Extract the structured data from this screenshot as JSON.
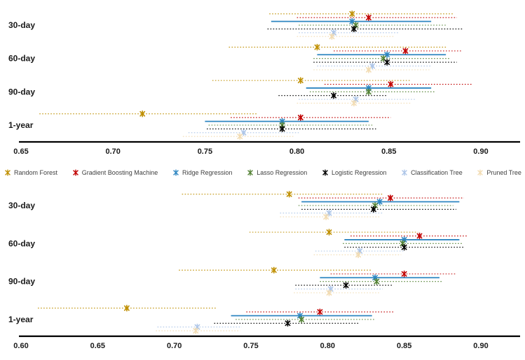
{
  "legend_note": "legend items are derived from chart series names/colors",
  "chart_data": [
    {
      "type": "scatter",
      "name": "top-forecast-horizon-intervals",
      "title": "",
      "xlabel": "",
      "ylabel": "",
      "orientation": "horizontal-confidence-intervals",
      "categories": [
        "30-day",
        "60-day",
        "90-day",
        "1-year"
      ],
      "xlim": [
        0.65,
        0.9
      ],
      "xticks": [
        0.65,
        0.7,
        0.75,
        0.8,
        0.85,
        0.9
      ],
      "grid": false,
      "legend_position": "below",
      "series": [
        {
          "name": "Random Forest",
          "color": "#BF8F00",
          "style": "dotted",
          "centers": [
            0.83,
            0.811,
            0.802,
            0.716
          ],
          "ci_low": [
            0.785,
            0.763,
            0.754,
            0.66
          ],
          "ci_high": [
            0.885,
            0.881,
            0.862,
            0.778
          ]
        },
        {
          "name": "Gradient Boosting Machine",
          "color": "#C00000",
          "style": "dotted",
          "centers": [
            0.839,
            0.859,
            0.851,
            0.802
          ],
          "ci_low": [
            0.8,
            0.82,
            0.815,
            0.764
          ],
          "ci_high": [
            0.887,
            0.89,
            0.895,
            0.851
          ]
        },
        {
          "name": "Ridge Regression",
          "color": "#2E86C1",
          "style": "solid",
          "centers": [
            0.83,
            0.849,
            0.839,
            0.792
          ],
          "ci_low": [
            0.786,
            0.811,
            0.805,
            0.75
          ],
          "ci_high": [
            0.873,
            0.881,
            0.873,
            0.839
          ]
        },
        {
          "name": "Lasso Regression",
          "color": "#548235",
          "style": "dotted",
          "centers": [
            0.832,
            0.847,
            0.839,
            0.792
          ],
          "ci_low": [
            0.801,
            0.809,
            0.807,
            0.752
          ],
          "ci_high": [
            0.881,
            0.883,
            0.875,
            0.841
          ]
        },
        {
          "name": "Logistic Regression",
          "color": "#000000",
          "style": "dotted",
          "centers": [
            0.831,
            0.849,
            0.82,
            0.792
          ],
          "ci_low": [
            0.784,
            0.809,
            0.79,
            0.751
          ],
          "ci_high": [
            0.89,
            0.887,
            0.849,
            0.843
          ]
        },
        {
          "name": "Classification Tree",
          "color": "#AEC6E8",
          "style": "dotted",
          "centers": [
            0.82,
            0.841,
            0.832,
            0.771
          ],
          "ci_low": [
            0.801,
            0.811,
            0.801,
            0.741
          ],
          "ci_high": [
            0.855,
            0.873,
            0.865,
            0.801
          ]
        },
        {
          "name": "Pruned Tree",
          "color": "#F2DCB3",
          "style": "dotted",
          "centers": [
            0.819,
            0.839,
            0.831,
            0.769
          ],
          "ci_low": [
            0.8,
            0.809,
            0.8,
            0.738
          ],
          "ci_high": [
            0.853,
            0.872,
            0.862,
            0.798
          ]
        }
      ]
    },
    {
      "type": "scatter",
      "name": "bottom-forecast-horizon-intervals",
      "title": "",
      "xlabel": "",
      "ylabel": "",
      "orientation": "horizontal-confidence-intervals",
      "categories": [
        "30-day",
        "60-day",
        "90-day",
        "1-year"
      ],
      "xlim": [
        0.6,
        0.9
      ],
      "xticks": [
        0.6,
        0.65,
        0.7,
        0.75,
        0.8,
        0.85,
        0.9
      ],
      "grid": false,
      "legend_position": "above",
      "series": [
        {
          "name": "Random Forest",
          "color": "#BF8F00",
          "style": "dotted",
          "centers": [
            0.775,
            0.801,
            0.765,
            0.669
          ],
          "ci_low": [
            0.705,
            0.749,
            0.703,
            0.611
          ],
          "ci_high": [
            0.836,
            0.859,
            0.829,
            0.728
          ]
        },
        {
          "name": "Gradient Boosting Machine",
          "color": "#C00000",
          "style": "dotted",
          "centers": [
            0.841,
            0.86,
            0.85,
            0.795
          ],
          "ci_low": [
            0.781,
            0.815,
            0.802,
            0.747
          ],
          "ci_high": [
            0.889,
            0.891,
            0.884,
            0.843
          ]
        },
        {
          "name": "Ridge Regression",
          "color": "#2E86C1",
          "style": "solid",
          "centers": [
            0.834,
            0.85,
            0.831,
            0.782
          ],
          "ci_low": [
            0.783,
            0.811,
            0.795,
            0.737
          ],
          "ci_high": [
            0.886,
            0.886,
            0.873,
            0.829
          ]
        },
        {
          "name": "Lasso Regression",
          "color": "#548235",
          "style": "dotted",
          "centers": [
            0.831,
            0.849,
            0.832,
            0.783
          ],
          "ci_low": [
            0.781,
            0.81,
            0.795,
            0.74
          ],
          "ci_high": [
            0.882,
            0.888,
            0.875,
            0.831
          ]
        },
        {
          "name": "Logistic Regression",
          "color": "#000000",
          "style": "dotted",
          "centers": [
            0.83,
            0.85,
            0.812,
            0.774
          ],
          "ci_low": [
            0.783,
            0.811,
            0.779,
            0.726
          ],
          "ci_high": [
            0.884,
            0.889,
            0.843,
            0.82
          ]
        },
        {
          "name": "Classification Tree",
          "color": "#AEC6E8",
          "style": "dotted",
          "centers": [
            0.801,
            0.821,
            0.802,
            0.715
          ],
          "ci_low": [
            0.769,
            0.792,
            0.779,
            0.689
          ],
          "ci_high": [
            0.836,
            0.85,
            0.836,
            0.744
          ]
        },
        {
          "name": "Pruned Tree",
          "color": "#F2DCB3",
          "style": "dotted",
          "centers": [
            0.799,
            0.82,
            0.801,
            0.714
          ],
          "ci_low": [
            0.769,
            0.791,
            0.778,
            0.688
          ],
          "ci_high": [
            0.834,
            0.848,
            0.834,
            0.743
          ]
        }
      ]
    }
  ]
}
